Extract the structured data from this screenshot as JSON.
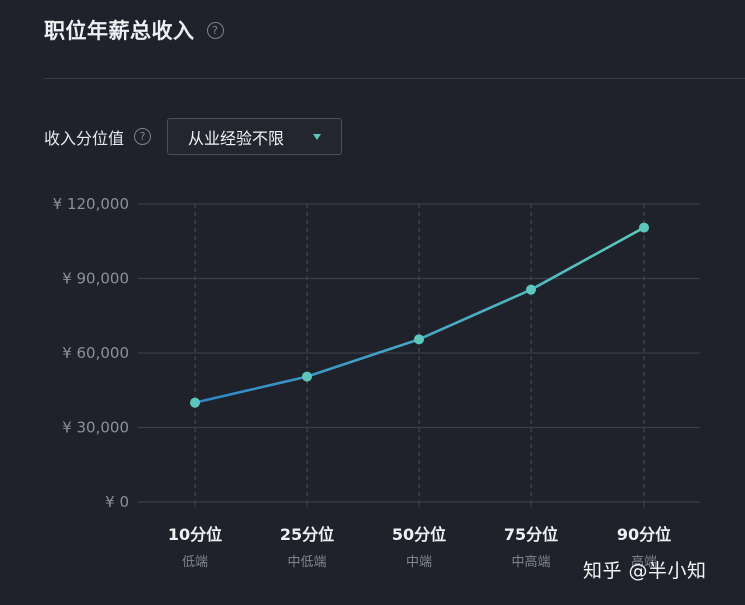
{
  "header": {
    "title": "职位年薪总收入",
    "help_icon": "question-circle-icon"
  },
  "filter": {
    "label": "收入分位值",
    "help_icon": "question-circle-icon",
    "select_value": "从业经验不限",
    "caret_icon": "caret-down-icon"
  },
  "watermark": "知乎 @半小知",
  "colors": {
    "background": "#1f222a",
    "line_start": "#2f86c8",
    "line_end": "#5cc8bd",
    "point": "#5cc8bd",
    "grid": "#3a3e48"
  },
  "chart_data": {
    "type": "line",
    "categories": [
      "10分位",
      "25分位",
      "50分位",
      "75分位",
      "90分位"
    ],
    "category_sublabels": [
      "低端",
      "中低端",
      "中端",
      "中高端",
      "高端"
    ],
    "values": [
      40000,
      50500,
      65500,
      85500,
      110500
    ],
    "ylim": [
      0,
      120000
    ],
    "yticks": [
      0,
      30000,
      60000,
      90000,
      120000
    ],
    "ytick_labels": [
      "¥ 0",
      "¥ 30,000",
      "¥ 60,000",
      "¥ 90,000",
      "¥ 120,000"
    ],
    "grid": true,
    "vertical_dashed_grid": true,
    "title": "",
    "xlabel": "",
    "ylabel": ""
  }
}
